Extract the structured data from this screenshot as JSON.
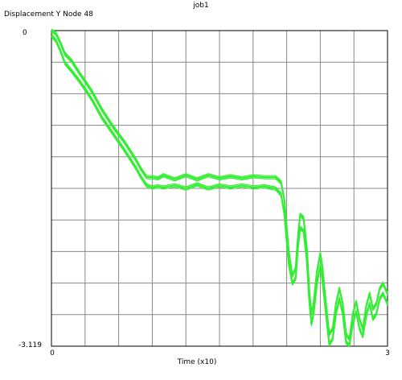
{
  "window": {
    "title": "job1"
  },
  "chart_data": {
    "type": "line",
    "title": "job1",
    "ylabel": "Displacement Y Node 48",
    "xlabel": "Time (x10)",
    "xlim": [
      0,
      3
    ],
    "ylim": [
      -3.119,
      0
    ],
    "x_tick_labels": [
      "0",
      "3"
    ],
    "y_tick_labels": [
      "0",
      "-3.119"
    ],
    "grid": true,
    "grid_divisions": {
      "x": 10,
      "y": 10
    },
    "series_color": "#33ee33",
    "series": [
      {
        "x": [
          0.0,
          0.04,
          0.08,
          0.12,
          0.18,
          0.25,
          0.3,
          0.36,
          0.45,
          0.55,
          0.65,
          0.75,
          0.8,
          0.85,
          0.9,
          0.95,
          1.0,
          1.1,
          1.2,
          1.3,
          1.4,
          1.5,
          1.6,
          1.7,
          1.8,
          1.9,
          2.0,
          2.05,
          2.08,
          2.1,
          2.12,
          2.15,
          2.18,
          2.2,
          2.22,
          2.25,
          2.28,
          2.3,
          2.32,
          2.34,
          2.37,
          2.4,
          2.42,
          2.45,
          2.48,
          2.51,
          2.54,
          2.57,
          2.6,
          2.63,
          2.66,
          2.69,
          2.72,
          2.75,
          2.78,
          2.81,
          2.84,
          2.87,
          2.9,
          2.93,
          2.96,
          3.0
        ],
        "y": [
          0.0,
          -0.03,
          -0.12,
          -0.23,
          -0.3,
          -0.42,
          -0.5,
          -0.6,
          -0.78,
          -0.95,
          -1.1,
          -1.27,
          -1.37,
          -1.45,
          -1.45,
          -1.46,
          -1.43,
          -1.47,
          -1.43,
          -1.47,
          -1.43,
          -1.46,
          -1.44,
          -1.46,
          -1.44,
          -1.45,
          -1.45,
          -1.5,
          -1.68,
          -1.95,
          -2.2,
          -2.42,
          -2.35,
          -2.05,
          -1.82,
          -1.85,
          -2.15,
          -2.55,
          -2.8,
          -2.7,
          -2.38,
          -2.2,
          -2.35,
          -2.7,
          -3.0,
          -2.95,
          -2.7,
          -2.55,
          -2.7,
          -3.0,
          -3.05,
          -2.8,
          -2.68,
          -2.85,
          -2.95,
          -2.72,
          -2.6,
          -2.75,
          -2.7,
          -2.55,
          -2.5,
          -2.6
        ]
      },
      {
        "x": [
          0.0,
          0.04,
          0.08,
          0.12,
          0.18,
          0.25,
          0.3,
          0.36,
          0.45,
          0.55,
          0.65,
          0.75,
          0.8,
          0.85,
          0.9,
          0.95,
          1.0,
          1.1,
          1.2,
          1.3,
          1.4,
          1.5,
          1.6,
          1.7,
          1.8,
          1.9,
          2.0,
          2.05,
          2.08,
          2.1,
          2.12,
          2.15,
          2.18,
          2.2,
          2.22,
          2.25,
          2.28,
          2.3,
          2.32,
          2.34,
          2.37,
          2.4,
          2.42,
          2.45,
          2.48,
          2.51,
          2.54,
          2.57,
          2.6,
          2.63,
          2.66,
          2.69,
          2.72,
          2.75,
          2.78,
          2.81,
          2.84,
          2.87,
          2.9,
          2.93,
          2.96,
          3.0
        ],
        "y": [
          -0.05,
          -0.1,
          -0.2,
          -0.32,
          -0.4,
          -0.5,
          -0.58,
          -0.68,
          -0.86,
          -1.02,
          -1.18,
          -1.35,
          -1.45,
          -1.53,
          -1.55,
          -1.54,
          -1.55,
          -1.53,
          -1.56,
          -1.52,
          -1.56,
          -1.53,
          -1.55,
          -1.53,
          -1.55,
          -1.54,
          -1.56,
          -1.62,
          -1.82,
          -2.08,
          -2.32,
          -2.5,
          -2.45,
          -2.15,
          -1.95,
          -1.98,
          -2.28,
          -2.65,
          -2.9,
          -2.8,
          -2.5,
          -2.32,
          -2.48,
          -2.8,
          -3.1,
          -3.05,
          -2.8,
          -2.65,
          -2.8,
          -3.08,
          -3.11,
          -2.9,
          -2.78,
          -2.95,
          -3.02,
          -2.82,
          -2.7,
          -2.85,
          -2.8,
          -2.65,
          -2.6,
          -2.7
        ]
      }
    ]
  }
}
